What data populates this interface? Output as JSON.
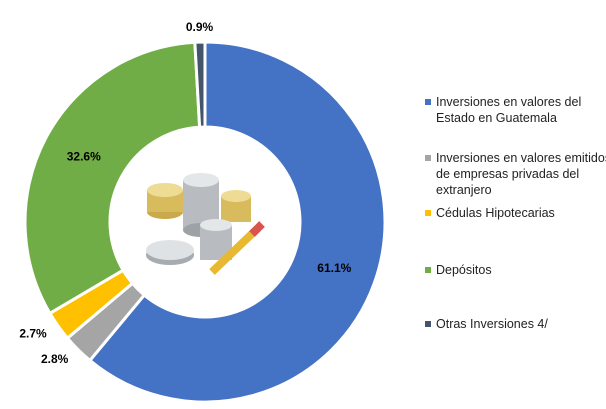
{
  "chart_data": {
    "type": "donut",
    "categories": [
      "Inversiones en valores del Estado en Guatemala",
      "Inversiones en valores emitidos de empresas privadas del extranjero",
      "Cédulas Hipotecarias",
      "Depósitos",
      "Otras Inversiones 4/"
    ],
    "values": [
      61.1,
      2.8,
      2.7,
      32.6,
      0.9
    ],
    "value_labels": [
      "61.1%",
      "2.8%",
      "2.7%",
      "32.6%",
      "0.9%"
    ],
    "colors": [
      "#4472c4",
      "#a5a5a5",
      "#ffc000",
      "#70ad47",
      "#44546a"
    ],
    "legend": "right"
  }
}
